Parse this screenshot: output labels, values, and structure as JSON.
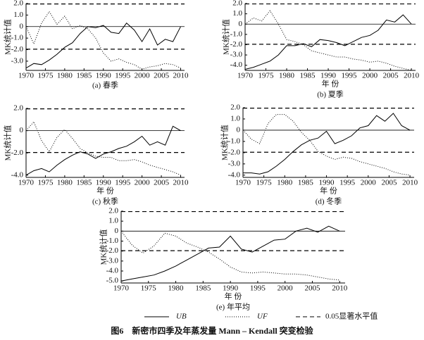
{
  "figure_title": "图6　新密市四季及年蒸发量 Mann – Kendall 突变检验",
  "legend": {
    "threshold_label": "0.05显著水平值"
  },
  "chart_data": [
    {
      "type": "line",
      "caption": "(a) 春季",
      "ylabel": "MK统计值",
      "x": [
        1970,
        1972,
        1974,
        1976,
        1978,
        1980,
        1982,
        1984,
        1986,
        1988,
        1990,
        1992,
        1994,
        1996,
        1998,
        2000,
        2002,
        2004,
        2006,
        2008,
        2010
      ],
      "series": [
        {
          "name": "UB",
          "color": "#000000",
          "dash": "solid",
          "values": [
            -3.6,
            -3.2,
            -3.3,
            -2.9,
            -2.4,
            -1.8,
            -1.4,
            -0.6,
            0.0,
            -0.1,
            0.1,
            -0.5,
            -0.6,
            0.3,
            -0.3,
            -1.3,
            -0.2,
            -1.6,
            -1.1,
            -1.3,
            0.0
          ]
        },
        {
          "name": "UF",
          "color": "#000000",
          "dash": "dotted",
          "values": [
            0.0,
            -1.5,
            0.3,
            1.3,
            0.2,
            0.9,
            -0.2,
            0.1,
            -0.2,
            -1.0,
            -2.3,
            -3.0,
            -2.8,
            -3.1,
            -3.3,
            -3.7,
            -3.5,
            -3.4,
            -3.2,
            -3.3,
            -3.6
          ]
        }
      ],
      "thresholds": [
        -1.96,
        1.96
      ],
      "xlim": [
        1970,
        2011
      ],
      "xticks": [
        1970,
        1975,
        1980,
        1985,
        1990,
        1995,
        2000,
        2005,
        2010
      ],
      "ylim": [
        -3.8,
        2.0
      ],
      "yticks": [
        {
          "value": 2,
          "label": "2.0"
        },
        {
          "value": 1,
          "label": "1.0"
        },
        0,
        {
          "value": -1,
          "label": "-1.0"
        },
        {
          "value": -2,
          "label": "-2.0"
        },
        {
          "value": -3,
          "label": "-3.0"
        }
      ]
    },
    {
      "type": "line",
      "caption": "(b) 夏季",
      "xlabel": "年 份",
      "ylabel": "MK统计值",
      "x": [
        1970,
        1972,
        1974,
        1976,
        1978,
        1980,
        1982,
        1984,
        1986,
        1988,
        1990,
        1992,
        1994,
        1996,
        1998,
        2000,
        2002,
        2004,
        2006,
        2008,
        2010
      ],
      "series": [
        {
          "name": "UB",
          "color": "#000000",
          "dash": "solid",
          "values": [
            -4.4,
            -4.2,
            -3.9,
            -3.6,
            -3.0,
            -2.1,
            -2.1,
            -1.9,
            -2.2,
            -1.5,
            -1.6,
            -1.8,
            -2.1,
            -1.7,
            -1.3,
            -1.1,
            -0.6,
            0.4,
            0.2,
            0.9,
            0.0
          ]
        },
        {
          "name": "UF",
          "color": "#000000",
          "dash": "dotted",
          "values": [
            0.0,
            0.6,
            0.3,
            1.3,
            0.0,
            -1.5,
            -1.7,
            -2.0,
            -2.6,
            -2.8,
            -3.0,
            -3.2,
            -3.2,
            -3.4,
            -3.5,
            -3.7,
            -3.6,
            -3.8,
            -4.1,
            -4.3,
            -4.5
          ]
        }
      ],
      "thresholds": [
        -1.96,
        1.96
      ],
      "xlim": [
        1970,
        2011
      ],
      "xticks": [
        1970,
        1975,
        1980,
        1985,
        1990,
        1995,
        2000,
        2005,
        2010
      ],
      "ylim": [
        -4.5,
        2.0
      ],
      "yticks": [
        {
          "value": 2,
          "label": "2.0"
        },
        {
          "value": 1,
          "label": "1.0"
        },
        0,
        {
          "value": -1,
          "label": "-1.0"
        },
        {
          "value": -2,
          "label": "-2.0"
        },
        {
          "value": -3,
          "label": "-3.0"
        },
        {
          "value": -4,
          "label": "-4.0"
        }
      ]
    },
    {
      "type": "line",
      "caption": "(c) 秋季",
      "xlabel": "年 份",
      "ylabel": "MK统计值",
      "x": [
        1970,
        1972,
        1974,
        1976,
        1978,
        1980,
        1982,
        1984,
        1986,
        1988,
        1990,
        1992,
        1994,
        1996,
        1998,
        2000,
        2002,
        2004,
        2006,
        2008,
        2010
      ],
      "series": [
        {
          "name": "UB",
          "color": "#000000",
          "dash": "solid",
          "values": [
            -4.0,
            -3.6,
            -3.4,
            -3.7,
            -3.1,
            -2.6,
            -2.2,
            -1.9,
            -2.1,
            -2.5,
            -2.1,
            -1.9,
            -1.6,
            -1.4,
            -1.0,
            -0.5,
            -1.3,
            -1.0,
            -1.3,
            0.4,
            0.0
          ]
        },
        {
          "name": "UF",
          "color": "#000000",
          "dash": "dotted",
          "values": [
            0.0,
            0.8,
            -0.9,
            -1.9,
            -0.6,
            0.1,
            -0.7,
            -1.6,
            -2.0,
            -2.3,
            -2.4,
            -2.4,
            -2.7,
            -2.7,
            -2.6,
            -2.8,
            -3.1,
            -3.3,
            -3.5,
            -3.7,
            -4.0
          ]
        }
      ],
      "thresholds": [
        -1.96,
        1.96
      ],
      "xlim": [
        1970,
        2011
      ],
      "xticks": [
        1970,
        1975,
        1980,
        1985,
        1990,
        1995,
        2000,
        2005,
        2010
      ],
      "ylim": [
        -4.2,
        2.0
      ],
      "yticks": [
        {
          "value": 2,
          "label": "2.0"
        },
        0,
        {
          "value": -2,
          "label": "-2.0"
        },
        {
          "value": -4,
          "label": "-4.0"
        }
      ]
    },
    {
      "type": "line",
      "caption": "(d) 冬季",
      "xlabel": "年 份",
      "ylabel": "MK统计值",
      "x": [
        1970,
        1972,
        1974,
        1976,
        1978,
        1980,
        1982,
        1984,
        1986,
        1988,
        1990,
        1992,
        1994,
        1996,
        1998,
        2000,
        2002,
        2004,
        2006,
        2008,
        2010
      ],
      "series": [
        {
          "name": "UB",
          "color": "#000000",
          "dash": "solid",
          "values": [
            -3.8,
            -3.8,
            -3.9,
            -3.7,
            -3.2,
            -2.6,
            -1.9,
            -1.3,
            -0.9,
            -0.7,
            -0.1,
            -1.2,
            -0.9,
            -0.5,
            0.2,
            0.4,
            1.3,
            0.8,
            1.5,
            0.4,
            0.0
          ]
        },
        {
          "name": "UF",
          "color": "#000000",
          "dash": "dotted",
          "values": [
            0.0,
            -0.8,
            -1.2,
            0.6,
            1.4,
            1.4,
            0.8,
            -0.2,
            -0.9,
            -1.9,
            -2.3,
            -2.6,
            -2.4,
            -2.5,
            -2.8,
            -3.0,
            -3.2,
            -3.4,
            -3.7,
            -3.9,
            -4.0
          ]
        }
      ],
      "thresholds": [
        -1.96,
        1.96
      ],
      "xlim": [
        1970,
        2011
      ],
      "xticks": [
        1970,
        1975,
        1980,
        1985,
        1990,
        1995,
        2000,
        2005,
        2010
      ],
      "ylim": [
        -4.2,
        2.0
      ],
      "yticks": [
        {
          "value": 2,
          "label": "2.0"
        },
        {
          "value": 1,
          "label": "1.0"
        },
        0,
        {
          "value": -1,
          "label": "-1.0"
        },
        {
          "value": -2,
          "label": "-2.0"
        },
        {
          "value": -3,
          "label": "-3.0"
        },
        {
          "value": -4,
          "label": "-4.0"
        }
      ]
    },
    {
      "type": "line",
      "caption": "(e) 年平均",
      "xlabel": "年 份",
      "ylabel": "MK统计值",
      "x": [
        1970,
        1972,
        1974,
        1976,
        1978,
        1980,
        1982,
        1984,
        1986,
        1988,
        1990,
        1992,
        1994,
        1996,
        1998,
        2000,
        2002,
        2004,
        2006,
        2008,
        2010
      ],
      "series": [
        {
          "name": "UB",
          "color": "#000000",
          "dash": "solid",
          "values": [
            -5.0,
            -4.8,
            -4.6,
            -4.4,
            -4.0,
            -3.5,
            -2.9,
            -2.3,
            -1.7,
            -1.6,
            -0.5,
            -1.8,
            -2.1,
            -1.5,
            -0.9,
            -0.8,
            0.0,
            0.3,
            -0.1,
            0.5,
            0.0
          ]
        },
        {
          "name": "UF",
          "color": "#000000",
          "dash": "dotted",
          "values": [
            0.0,
            -1.4,
            -2.2,
            -1.5,
            -0.2,
            -0.5,
            -1.2,
            -1.6,
            -2.1,
            -2.8,
            -3.6,
            -4.1,
            -4.2,
            -4.1,
            -4.2,
            -4.3,
            -4.3,
            -4.4,
            -4.6,
            -4.8,
            -4.9
          ]
        }
      ],
      "thresholds": [
        -1.96,
        1.96
      ],
      "xlim": [
        1970,
        2011
      ],
      "xticks": [
        1970,
        1975,
        1980,
        1985,
        1990,
        1995,
        2000,
        2005,
        2010
      ],
      "ylim": [
        -5.2,
        2.0
      ],
      "yticks": [
        {
          "value": 2,
          "label": "2.0"
        },
        {
          "value": 1,
          "label": "1.0"
        },
        0,
        {
          "value": -1,
          "label": "-1.0"
        },
        {
          "value": -2,
          "label": "-2.0"
        },
        {
          "value": -3,
          "label": "-3.0"
        },
        {
          "value": -4,
          "label": "-4.0"
        },
        {
          "value": -5,
          "label": "-5.0"
        }
      ]
    }
  ]
}
